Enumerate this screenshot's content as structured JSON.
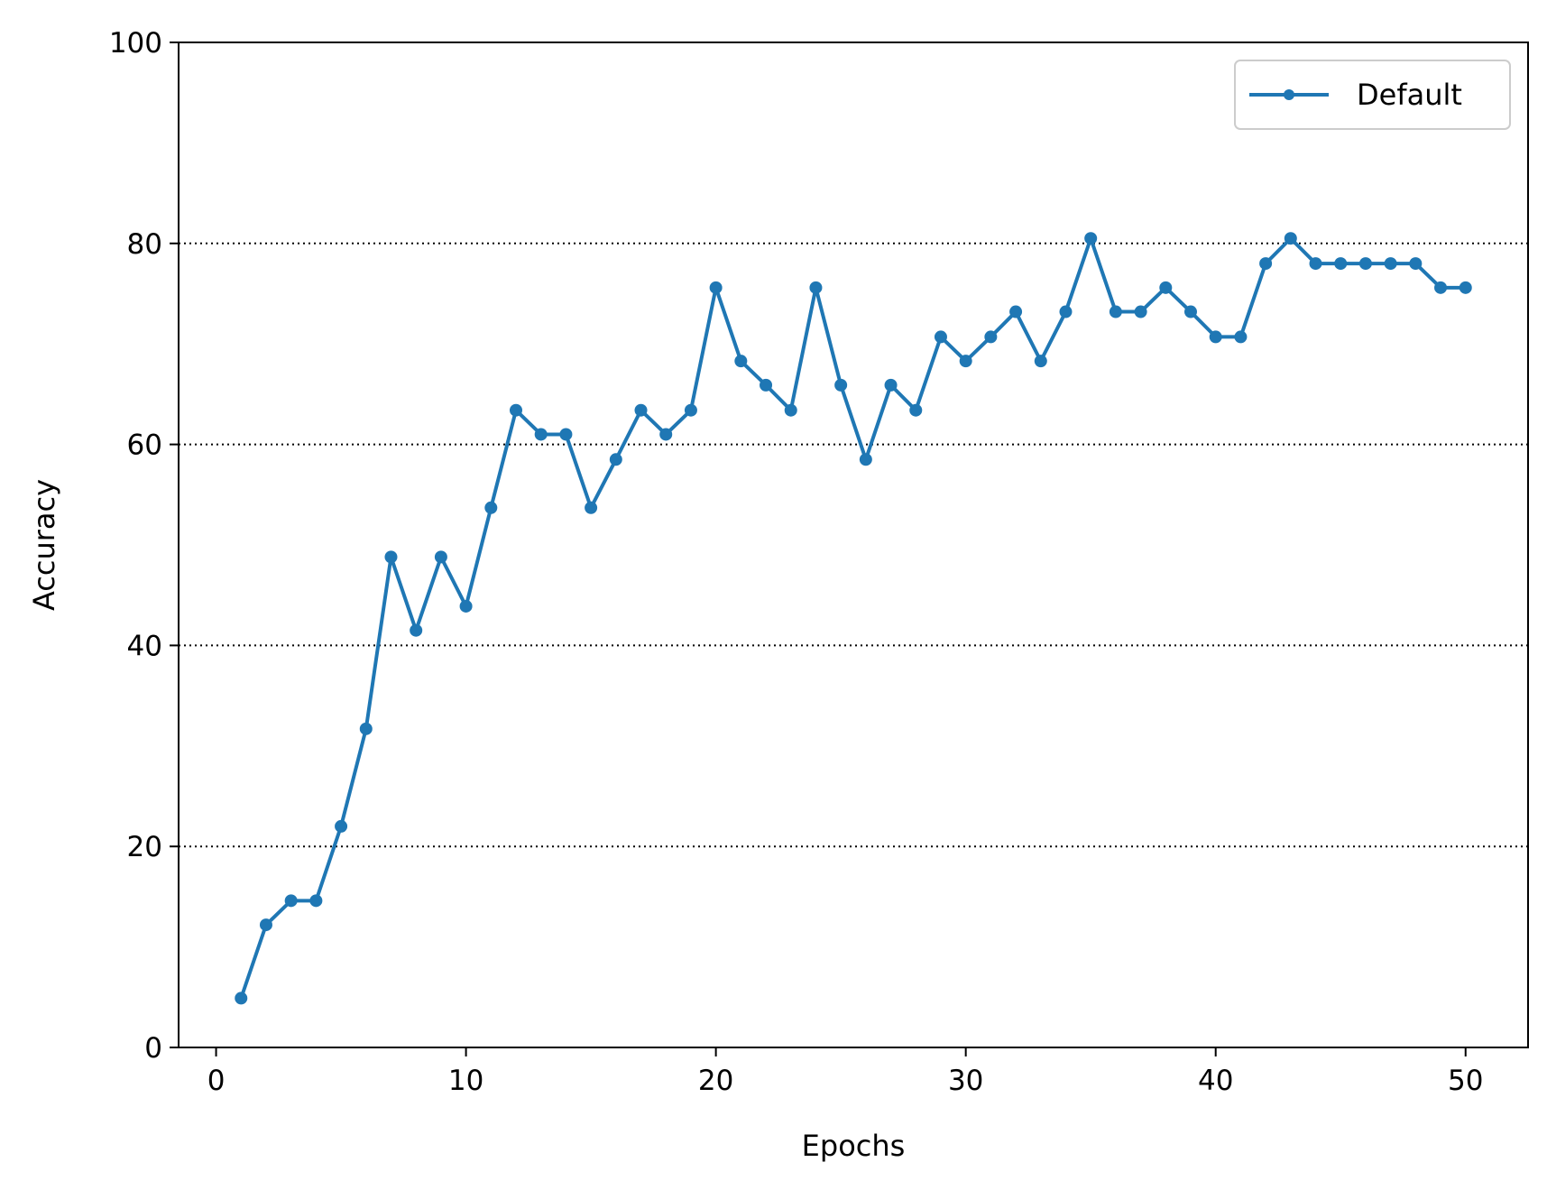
{
  "chart_data": {
    "type": "line",
    "title": "",
    "xlabel": "Epochs",
    "ylabel": "Accuracy",
    "xlim": [
      -1.5,
      52.5
    ],
    "ylim": [
      0,
      100
    ],
    "xticks": [
      0,
      10,
      20,
      30,
      40,
      50
    ],
    "yticks": [
      0,
      20,
      40,
      60,
      80,
      100
    ],
    "grid": {
      "axis": "y",
      "style": "dotted",
      "lines_at": [
        20,
        40,
        60,
        80
      ]
    },
    "legend": {
      "position": "upper-right"
    },
    "series": [
      {
        "name": "Default",
        "color": "#1f77b4",
        "marker": "circle",
        "x": [
          1,
          2,
          3,
          4,
          5,
          6,
          7,
          8,
          9,
          10,
          11,
          12,
          13,
          14,
          15,
          16,
          17,
          18,
          19,
          20,
          21,
          22,
          23,
          24,
          25,
          26,
          27,
          28,
          29,
          30,
          31,
          32,
          33,
          34,
          35,
          36,
          37,
          38,
          39,
          40,
          41,
          42,
          43,
          44,
          45,
          46,
          47,
          48,
          49,
          50
        ],
        "y": [
          4.9,
          12.2,
          14.6,
          14.6,
          22.0,
          31.7,
          48.8,
          41.5,
          48.8,
          43.9,
          53.7,
          63.4,
          61.0,
          61.0,
          53.7,
          58.5,
          63.4,
          61.0,
          63.4,
          75.6,
          68.3,
          65.9,
          63.4,
          75.6,
          65.9,
          58.5,
          65.9,
          63.4,
          70.7,
          68.3,
          70.7,
          73.2,
          68.3,
          73.2,
          80.5,
          73.2,
          73.2,
          75.6,
          73.2,
          70.7,
          70.7,
          78.0,
          80.5,
          78.0,
          78.0,
          78.0,
          78.0,
          78.0,
          75.6,
          75.6
        ]
      }
    ]
  }
}
